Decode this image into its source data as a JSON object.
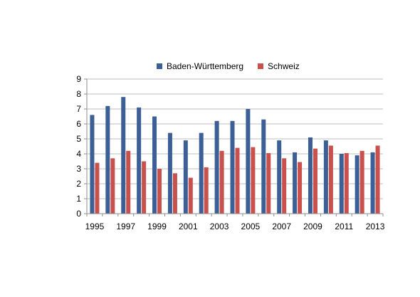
{
  "chart_data": {
    "type": "bar",
    "categories": [
      "1995",
      "1996",
      "1997",
      "1998",
      "1999",
      "2000",
      "2001",
      "2002",
      "2003",
      "2004",
      "2005",
      "2006",
      "2007",
      "2008",
      "2009",
      "2010",
      "2011",
      "2012",
      "2013"
    ],
    "x_tick_labels": [
      "1995",
      "1997",
      "1999",
      "2001",
      "2003",
      "2005",
      "2007",
      "2009",
      "2011",
      "2013"
    ],
    "y_ticks": [
      0,
      1,
      2,
      3,
      4,
      5,
      6,
      7,
      8,
      9
    ],
    "ylim": [
      0,
      9
    ],
    "grid": true,
    "legend_position": "top",
    "series": [
      {
        "name": "Baden-Württemberg",
        "color": "#3c5f96",
        "values": [
          6.6,
          7.2,
          7.8,
          7.1,
          6.5,
          5.4,
          4.9,
          5.4,
          6.2,
          6.2,
          7.0,
          6.3,
          4.9,
          4.1,
          5.1,
          4.9,
          4.0,
          3.9,
          4.1
        ]
      },
      {
        "name": "Schweiz",
        "color": "#c8504d",
        "values": [
          3.4,
          3.7,
          4.2,
          3.5,
          3.0,
          2.7,
          2.4,
          3.1,
          4.2,
          4.4,
          4.45,
          4.05,
          3.7,
          3.45,
          4.35,
          4.55,
          4.05,
          4.2,
          4.55
        ]
      }
    ]
  }
}
